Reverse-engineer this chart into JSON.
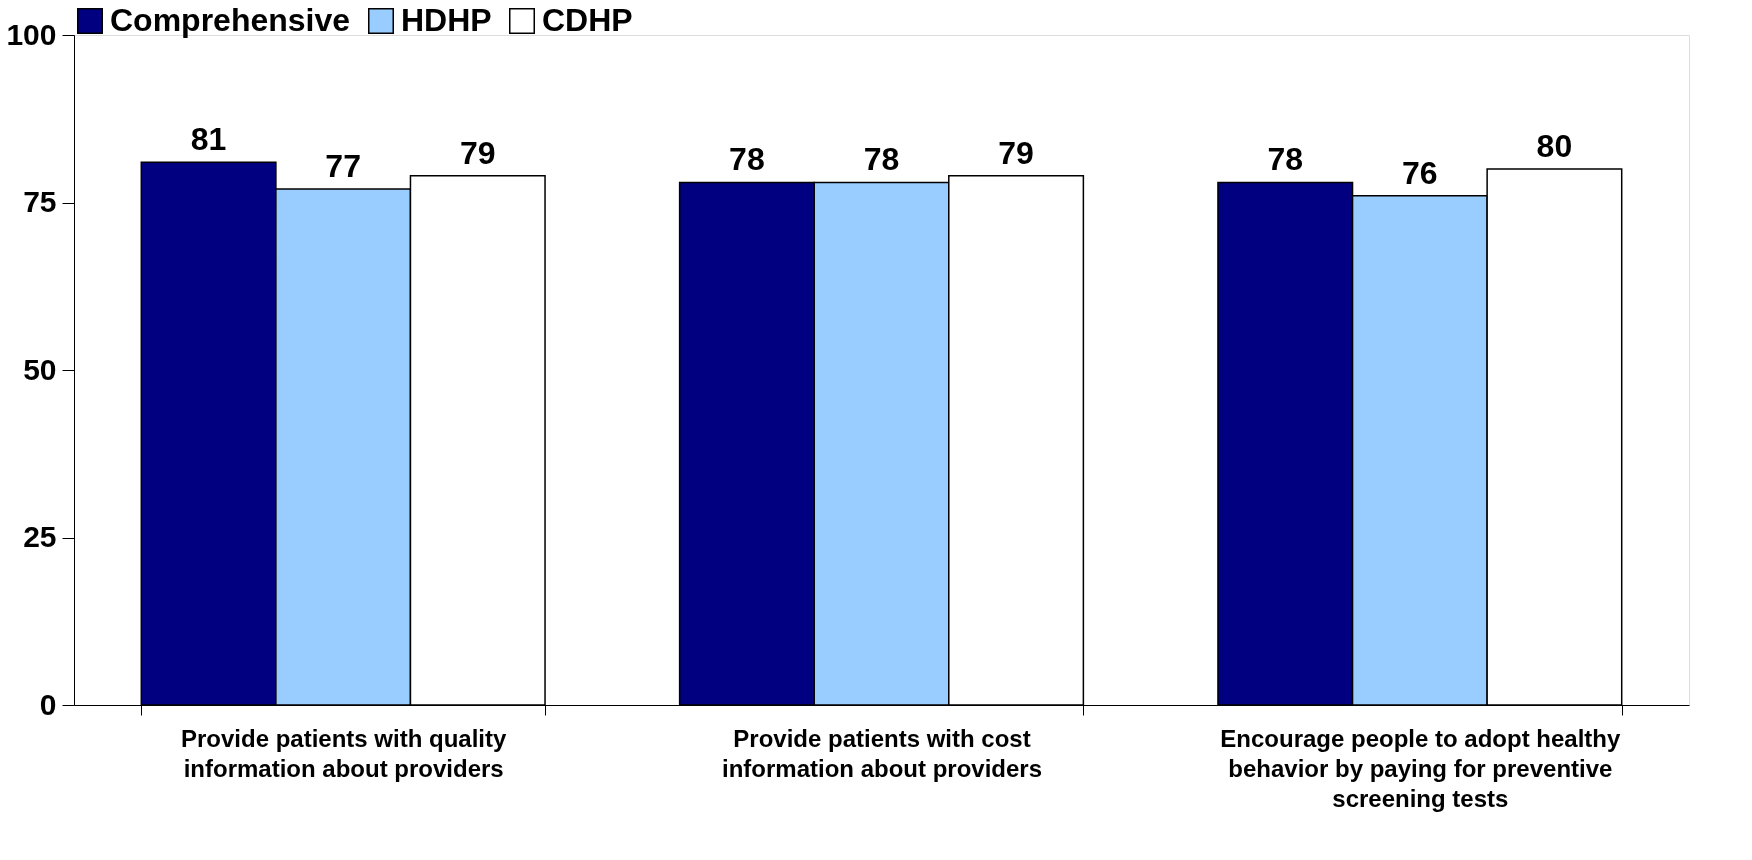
{
  "chart_data": {
    "type": "bar",
    "categories": [
      "Provide patients with quality information about providers",
      "Provide patients with cost information about providers",
      "Encourage people to adopt healthy behavior by paying for preventive screening tests"
    ],
    "series": [
      {
        "name": "Comprehensive",
        "color": "#000080",
        "values": [
          81,
          78,
          78
        ]
      },
      {
        "name": "HDHP",
        "color": "#99ccff",
        "values": [
          77,
          78,
          76
        ]
      },
      {
        "name": "CDHP",
        "color": "#ffffff",
        "values": [
          79,
          79,
          80
        ]
      }
    ],
    "ylim": [
      0,
      100
    ],
    "yticks": [
      0,
      25,
      50,
      75,
      100
    ],
    "grid": false,
    "legend": "top",
    "data_labels": true
  }
}
